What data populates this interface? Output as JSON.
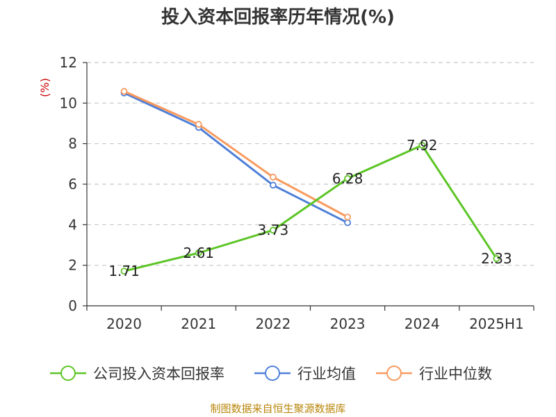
{
  "chart_data": {
    "type": "line",
    "title": "投入资本回报率历年情况(%)",
    "ylabel": "(%)",
    "xlabel": "",
    "categories": [
      "2020",
      "2021",
      "2022",
      "2023",
      "2024",
      "2025H1"
    ],
    "ylim": [
      0,
      12
    ],
    "yticks": [
      0,
      2,
      4,
      6,
      8,
      10,
      12
    ],
    "grid": true,
    "legend_position": "bottom",
    "series": [
      {
        "name": "公司投入资本回报率",
        "color": "#5cc525",
        "values": [
          1.71,
          2.61,
          3.73,
          6.28,
          7.92,
          2.33
        ],
        "labels": [
          "1.71",
          "2.61",
          "3.73",
          "6.28",
          "7.92",
          "2.33"
        ]
      },
      {
        "name": "行业均值",
        "color": "#4f7fd8",
        "values": [
          10.5,
          8.8,
          5.95,
          4.1,
          null,
          null
        ]
      },
      {
        "name": "行业中位数",
        "color": "#f89a5e",
        "values": [
          10.58,
          8.95,
          6.35,
          4.38,
          null,
          null
        ]
      }
    ]
  },
  "source": "制图数据来自恒生聚源数据库"
}
